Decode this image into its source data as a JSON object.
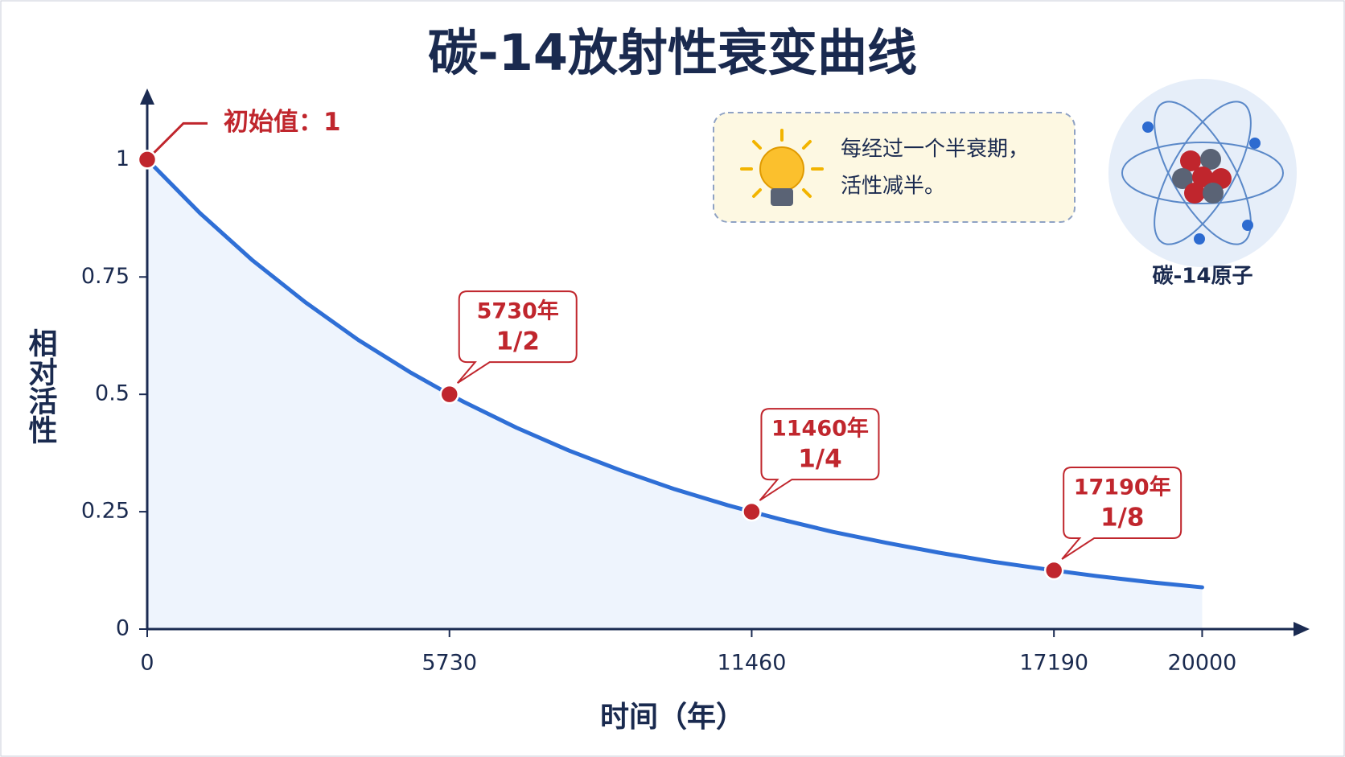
{
  "chart_data": {
    "type": "line",
    "title": "碳-14放射性衰变曲线",
    "x_label": "时间（年）",
    "y_label": "相对活性",
    "x": [
      0,
      1000,
      2000,
      3000,
      4000,
      5000,
      5730,
      6000,
      7000,
      8000,
      9000,
      10000,
      11000,
      11460,
      12000,
      13000,
      14000,
      15000,
      16000,
      17000,
      17190,
      18000,
      19000,
      20000
    ],
    "series": [
      {
        "color": "#2f6fd6",
        "values": [
          1,
          0.886,
          0.785,
          0.696,
          0.616,
          0.546,
          0.5,
          0.484,
          0.429,
          0.38,
          0.337,
          0.298,
          0.264,
          0.25,
          0.234,
          0.207,
          0.184,
          0.163,
          0.144,
          0.128,
          0.125,
          0.113,
          0.1,
          0.089
        ]
      }
    ],
    "xlim": [
      0,
      21000
    ],
    "ylim": [
      0,
      1.1
    ],
    "xticks": [
      0,
      5730,
      11460,
      17190,
      20000
    ],
    "yticks": [
      0,
      0.25,
      0.5,
      0.75,
      1
    ],
    "fill_area": true,
    "marker_color": "#c0262d",
    "annotations": [
      {
        "x": 0,
        "y": 1,
        "labels": [
          "初始值：1"
        ]
      },
      {
        "x": 5730,
        "y": 0.5,
        "labels": [
          "5730年",
          "1/2"
        ]
      },
      {
        "x": 11460,
        "y": 0.25,
        "labels": [
          "11460年",
          "1/4"
        ]
      },
      {
        "x": 17190,
        "y": 0.125,
        "labels": [
          "17190年",
          "1/8"
        ]
      }
    ],
    "callout": [
      "每经过一个半衰期，",
      "活性减半。"
    ],
    "atom_label": "碳-14原子"
  }
}
